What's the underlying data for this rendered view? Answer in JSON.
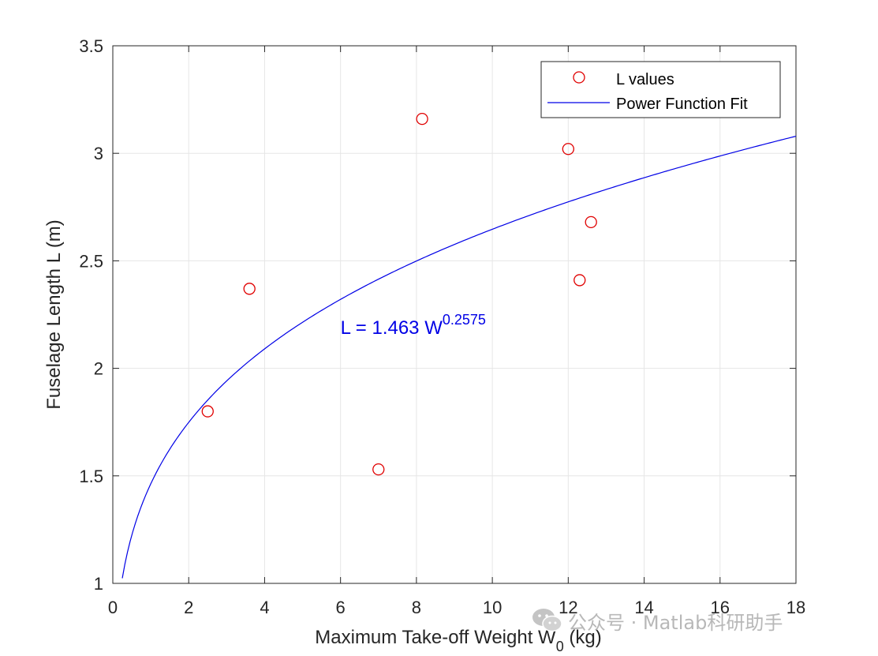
{
  "chart_data": {
    "type": "scatter",
    "title": "",
    "xlabel": "Maximum Take-off Weight W",
    "xlabel_subscript": "0",
    "xlabel_suffix": " (kg)",
    "ylabel": "Fuselage Length L (m)",
    "xlim": [
      0,
      18
    ],
    "ylim": [
      1,
      3.5
    ],
    "xticks": [
      0,
      2,
      4,
      6,
      8,
      10,
      12,
      14,
      16,
      18
    ],
    "xtick_labels": [
      "0",
      "2",
      "4",
      "6",
      "8",
      "10",
      "12",
      "14",
      "16",
      "18"
    ],
    "yticks": [
      1,
      1.5,
      2,
      2.5,
      3,
      3.5
    ],
    "ytick_labels": [
      "1",
      "1.5",
      "2",
      "2.5",
      "3",
      "3.5"
    ],
    "grid": true,
    "legend_position": "top-right",
    "series": [
      {
        "name": "L values",
        "kind": "scatter",
        "marker": "circle",
        "color": "#e00000",
        "x": [
          2.5,
          3.6,
          7.0,
          8.15,
          12.0,
          12.3,
          12.6
        ],
        "y": [
          1.8,
          2.37,
          1.53,
          3.16,
          3.02,
          2.41,
          2.68
        ]
      },
      {
        "name": "Power Function Fit",
        "kind": "line",
        "color": "#0000e6",
        "model": "power",
        "a": 1.463,
        "b": 0.2575,
        "x_range": [
          0.25,
          18
        ]
      }
    ],
    "annotation": {
      "text": "L = 1.463 W",
      "superscript": "0.2575",
      "x": 6.0,
      "y": 2.16,
      "color": "#0000e6"
    }
  },
  "watermark": {
    "text": "公众号 · Matlab科研助手",
    "icon": "wechat-icon",
    "color": "#b8b8b8"
  }
}
